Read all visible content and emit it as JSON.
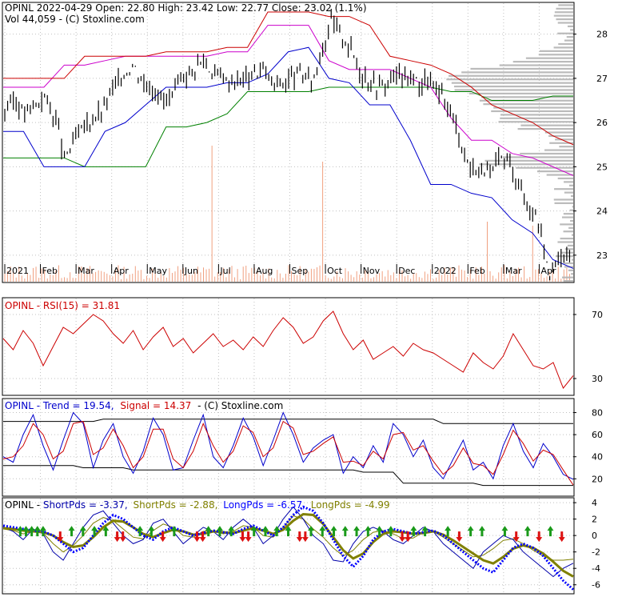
{
  "header": {
    "line1": "OPINL  2022-04-29 Open: 22.80  High: 23.42  Low: 22.77  Close: 23.02 (1.1%)",
    "line2": "Vol 44,059   - (C) Stoxline.com"
  },
  "colors": {
    "background": "#ffffff",
    "grid": "#c0c0c0",
    "price": "#000000",
    "volume": "#f0a080",
    "volume_profile": "#b4b4b4",
    "line_green": "#008000",
    "line_blue": "#0000cc",
    "line_magenta": "#cc00cc",
    "line_red": "#cc0000",
    "rsi": "#cc0000",
    "trend": "#0000cc",
    "signal": "#cc0000",
    "short1": "#0000aa",
    "short2": "#808000",
    "long1": "#0000ff",
    "long2": "#808000",
    "arrow_up": "#1a9a1a",
    "arrow_down": "#dd1111"
  },
  "x_axis_labels": [
    "2021",
    "Feb",
    "Mar",
    "Apr",
    "May",
    "Jun",
    "Jul",
    "Aug",
    "Sep",
    "Oct",
    "Nov",
    "Dec",
    "2022",
    "Feb",
    "Mar",
    "Apr"
  ],
  "chart_data": [
    {
      "panel": "price",
      "type": "line",
      "y_ticks": [
        "23",
        "24",
        "25",
        "26",
        "27",
        "28"
      ],
      "ylim": [
        22.4,
        28.7
      ],
      "series": [
        {
          "values": [
            26.3,
            26.5,
            26.2,
            26.4,
            26.6,
            26.2,
            25.2,
            25.6,
            25.9,
            26.1,
            26.3,
            26.8,
            27.1,
            27.3,
            26.9,
            26.8,
            26.5,
            26.6,
            27.0,
            27.2,
            27.4,
            27.1,
            27.0,
            26.9,
            27.0,
            27.1,
            27.2,
            26.9,
            26.9,
            27.0,
            27.1,
            26.9,
            27.6,
            28.3,
            28.0,
            27.6,
            27.1,
            26.9,
            26.8,
            27.0,
            27.1,
            27.0,
            26.9,
            26.9,
            26.6,
            26.3,
            25.6,
            24.9,
            25.0,
            24.8,
            25.2,
            25.1,
            24.5,
            24.1,
            23.7,
            22.6,
            22.9,
            23.02
          ]
        }
      ],
      "volume_profile_labels": [
        "23",
        "24",
        "25",
        "26",
        "27",
        "28"
      ]
    },
    {
      "panel": "rsi",
      "type": "line",
      "title": "OPINL - RSI(15) = 31.81",
      "y_ticks": [
        "70",
        "30"
      ],
      "ylim": [
        20,
        80
      ],
      "series": [
        {
          "values": [
            55,
            48,
            60,
            52,
            38,
            50,
            62,
            58,
            64,
            70,
            66,
            58,
            52,
            60,
            48,
            56,
            62,
            50,
            55,
            46,
            52,
            58,
            50,
            54,
            48,
            56,
            50,
            60,
            68,
            62,
            52,
            56,
            66,
            72,
            58,
            48,
            54,
            42,
            46,
            50,
            44,
            52,
            48,
            46,
            42,
            38,
            34,
            46,
            40,
            36,
            44,
            58,
            48,
            38,
            36,
            40,
            24,
            31.81
          ]
        }
      ]
    },
    {
      "panel": "trend",
      "type": "line",
      "title_trend": "OPINL - Trend = 19.54,",
      "title_signal": "Signal = 14.37",
      "title_credit": "- (C) Stoxline.com",
      "y_ticks": [
        "80",
        "60",
        "40",
        "20"
      ],
      "ylim": [
        5,
        92
      ],
      "series": [
        {
          "name": "Trend",
          "values": [
            40,
            35,
            60,
            78,
            50,
            28,
            55,
            80,
            70,
            30,
            55,
            70,
            40,
            25,
            45,
            75,
            60,
            28,
            30,
            55,
            78,
            40,
            30,
            50,
            75,
            58,
            32,
            55,
            80,
            60,
            35,
            48,
            55,
            60,
            25,
            40,
            30,
            50,
            35,
            70,
            60,
            40,
            55,
            30,
            20,
            38,
            55,
            28,
            35,
            20,
            50,
            70,
            45,
            30,
            52,
            40,
            24,
            19.54
          ]
        },
        {
          "name": "Signal",
          "values": [
            38,
            40,
            50,
            70,
            60,
            38,
            45,
            70,
            72,
            42,
            48,
            65,
            50,
            30,
            40,
            65,
            65,
            38,
            30,
            45,
            70,
            50,
            35,
            45,
            68,
            62,
            40,
            48,
            72,
            66,
            42,
            45,
            52,
            58,
            35,
            36,
            32,
            45,
            38,
            60,
            62,
            46,
            50,
            36,
            24,
            32,
            48,
            34,
            32,
            24,
            42,
            64,
            52,
            36,
            46,
            42,
            28,
            14.37
          ]
        }
      ]
    },
    {
      "panel": "pds",
      "type": "line",
      "title_prefix": "OPINL - ",
      "title_parts": [
        "ShortPds = -3.37,",
        "ShortPds = -2.88,",
        "LongPds = -6.57,",
        "LongPds = -4.99"
      ],
      "y_ticks": [
        "4",
        "2",
        "0",
        "-2",
        "-4",
        "-6"
      ],
      "ylim": [
        -7,
        4.5
      ],
      "series": [
        {
          "name": "ShortPds",
          "values": [
            1,
            0.5,
            -0.5,
            0.8,
            0.2,
            -2,
            -3,
            -1,
            1,
            2.5,
            3,
            1.5,
            0,
            -1,
            -0.5,
            1.5,
            2,
            0.5,
            -1,
            0,
            1,
            0.5,
            -0.5,
            1,
            2,
            1,
            -1,
            0,
            2,
            3.5,
            2,
            0,
            -1,
            -3,
            -3.2,
            -1,
            0.5,
            1,
            0.5,
            -0.5,
            -1,
            0,
            1,
            0.5,
            -1,
            -2,
            -3,
            -4,
            -2,
            -1,
            0,
            -0.5,
            -2,
            -3,
            -4,
            -5,
            -4,
            -3.37
          ]
        },
        {
          "name": "ShortPds",
          "values": [
            0.8,
            0.6,
            0.2,
            0.5,
            0.3,
            -1,
            -2,
            -1.2,
            0,
            1.5,
            2.2,
            1.8,
            0.8,
            -0.2,
            -0.4,
            0.6,
            1.4,
            1,
            0,
            -0.2,
            0.5,
            0.6,
            0.2,
            0.5,
            1.2,
            1,
            0,
            -0.2,
            1,
            2.4,
            2,
            0.8,
            -0.2,
            -1.5,
            -2.5,
            -1.8,
            -0.5,
            0.4,
            0.6,
            0.2,
            -0.4,
            -0.3,
            0.4,
            0.5,
            -0.2,
            -1,
            -1.8,
            -2.6,
            -2.4,
            -1.6,
            -0.6,
            -0.4,
            -1,
            -1.8,
            -2.5,
            -3,
            -3,
            -2.88
          ]
        },
        {
          "name": "LongPds",
          "values": [
            1.2,
            1,
            0.8,
            0.6,
            0.5,
            0,
            -1,
            -2,
            -1.5,
            0,
            1.5,
            2.5,
            2,
            1,
            0,
            -0.5,
            0.5,
            1,
            0.5,
            0,
            0.3,
            0.6,
            0.4,
            0.2,
            0.8,
            1.2,
            0.6,
            0,
            1,
            2.5,
            3.5,
            3,
            1.5,
            -0.5,
            -2.5,
            -3.8,
            -2.5,
            -0.5,
            0.5,
            0.8,
            0.5,
            0.2,
            0.4,
            0.6,
            0,
            -1,
            -2,
            -3,
            -4,
            -4.5,
            -3,
            -1.5,
            -1,
            -1.5,
            -2.5,
            -4,
            -5.5,
            -6.57
          ]
        },
        {
          "name": "LongPds",
          "values": [
            0.9,
            0.8,
            0.6,
            0.5,
            0.4,
            0,
            -0.8,
            -1.4,
            -1.2,
            -0.2,
            1,
            1.8,
            1.7,
            1,
            0.2,
            -0.2,
            0.3,
            0.7,
            0.5,
            0.1,
            0.2,
            0.5,
            0.4,
            0.3,
            0.6,
            0.9,
            0.6,
            0.2,
            0.7,
            1.8,
            2.6,
            2.5,
            1.4,
            -0.2,
            -1.8,
            -2.8,
            -2.2,
            -0.8,
            0.2,
            0.5,
            0.4,
            0.2,
            0.3,
            0.5,
            0.1,
            -0.6,
            -1.4,
            -2.2,
            -3,
            -3.4,
            -2.6,
            -1.6,
            -1.2,
            -1.5,
            -2.2,
            -3.2,
            -4.3,
            -4.99
          ]
        }
      ],
      "signals": {
        "up": [
          3,
          4,
          5,
          6,
          7,
          12,
          14,
          16,
          18,
          24,
          26,
          30,
          36,
          38,
          40,
          44,
          46,
          48,
          50,
          54,
          56,
          58,
          60,
          62,
          64,
          66,
          68,
          72,
          74,
          78,
          82,
          84,
          88,
          92,
          96
        ],
        "down": [
          10,
          20,
          21,
          28,
          34,
          35,
          42,
          43,
          52,
          53,
          70,
          71,
          80,
          90,
          94,
          98
        ]
      }
    }
  ]
}
